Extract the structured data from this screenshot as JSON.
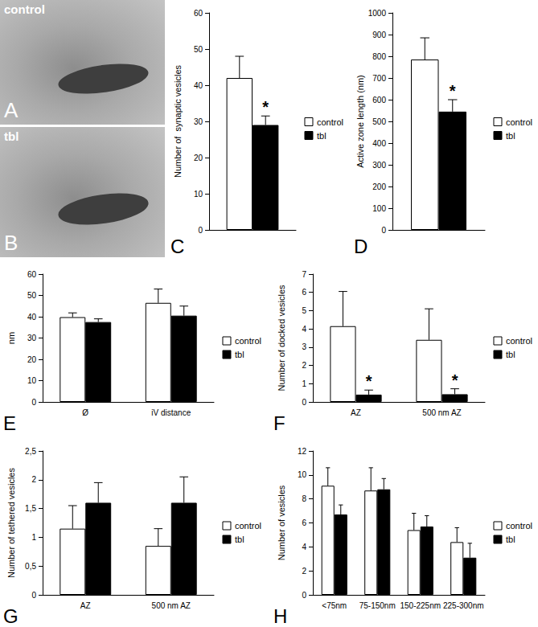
{
  "images": [
    {
      "panel_label": "A",
      "label": "control"
    },
    {
      "panel_label": "B",
      "label": "tbl"
    }
  ],
  "chart_data": [
    {
      "panel_label": "C",
      "type": "bar",
      "y_label": "Number of  synaptic vesicles",
      "categories": [
        null
      ],
      "series": [
        {
          "name": "control",
          "color": "#ffffff",
          "values": [
            42
          ],
          "errors": [
            6
          ]
        },
        {
          "name": "tbl",
          "color": "#000000",
          "values": [
            29
          ],
          "errors": [
            2.5
          ],
          "annotations": [
            "*"
          ]
        }
      ],
      "ylim": [
        0,
        60
      ],
      "yticks": [
        0,
        10,
        20,
        30,
        40,
        50,
        60
      ],
      "grid": false,
      "legend": "right"
    },
    {
      "panel_label": "D",
      "type": "bar",
      "y_label": "Active zone length (nm)",
      "categories": [
        null
      ],
      "series": [
        {
          "name": "control",
          "color": "#ffffff",
          "values": [
            785
          ],
          "errors": [
            100
          ]
        },
        {
          "name": "tbl",
          "color": "#000000",
          "values": [
            545
          ],
          "errors": [
            55
          ],
          "annotations": [
            "*"
          ]
        }
      ],
      "ylim": [
        0,
        1000
      ],
      "yticks": [
        0,
        100,
        200,
        300,
        400,
        500,
        600,
        700,
        800,
        900,
        1000
      ],
      "grid": false,
      "legend": "right"
    },
    {
      "panel_label": "E",
      "type": "bar",
      "y_label": "nm",
      "categories": [
        "Ø",
        "iV distance"
      ],
      "series": [
        {
          "name": "control",
          "color": "#ffffff",
          "values": [
            39.8,
            46.5
          ],
          "errors": [
            2,
            6.5
          ]
        },
        {
          "name": "tbl",
          "color": "#000000",
          "values": [
            37.5,
            40.5
          ],
          "errors": [
            1.5,
            4.5
          ]
        }
      ],
      "ylim": [
        0,
        60
      ],
      "yticks": [
        0,
        10,
        20,
        30,
        40,
        50,
        60
      ],
      "grid": false,
      "legend": "right"
    },
    {
      "panel_label": "F",
      "type": "bar",
      "y_label": "Number of docked vesicles",
      "categories": [
        "AZ",
        "500 nm AZ"
      ],
      "series": [
        {
          "name": "control",
          "color": "#ffffff",
          "values": [
            4.15,
            3.4
          ],
          "errors": [
            1.9,
            1.7
          ]
        },
        {
          "name": "tbl",
          "color": "#000000",
          "values": [
            0.4,
            0.42
          ],
          "errors": [
            0.25,
            0.3
          ],
          "annotations": [
            "*",
            "*"
          ]
        }
      ],
      "ylim": [
        0,
        7
      ],
      "yticks": [
        0,
        1,
        2,
        3,
        4,
        5,
        6,
        7
      ],
      "grid": false,
      "legend": "right"
    },
    {
      "panel_label": "G",
      "type": "bar",
      "y_label": "Number of tethered vesicles",
      "categories": [
        "AZ",
        "500 nm AZ"
      ],
      "series": [
        {
          "name": "control",
          "color": "#ffffff",
          "values": [
            1.15,
            0.85
          ],
          "errors": [
            0.4,
            0.3
          ]
        },
        {
          "name": "tbl",
          "color": "#000000",
          "values": [
            1.6,
            1.6
          ],
          "errors": [
            0.35,
            0.45
          ]
        }
      ],
      "ylim": [
        0,
        2.5
      ],
      "yticks": [
        0,
        {
          "value": 0.5,
          "label": "0,5"
        },
        1,
        {
          "value": 1.5,
          "label": "1,5"
        },
        2,
        {
          "value": 2.5,
          "label": "2,5"
        }
      ],
      "grid": false,
      "legend": "right"
    },
    {
      "panel_label": "H",
      "type": "bar",
      "y_label": "Number of vesicles",
      "categories": [
        "<75nm",
        "75-150nm",
        "150-225nm",
        "225-300nm"
      ],
      "series": [
        {
          "name": "control",
          "color": "#ffffff",
          "values": [
            9.1,
            8.7,
            5.4,
            4.4
          ],
          "errors": [
            1.5,
            1.9,
            1.4,
            1.2
          ]
        },
        {
          "name": "tbl",
          "color": "#000000",
          "values": [
            6.7,
            8.8,
            5.7,
            3.1
          ],
          "errors": [
            0.8,
            0.9,
            0.9,
            1.2
          ]
        }
      ],
      "ylim": [
        0,
        12
      ],
      "yticks": [
        0,
        2,
        4,
        6,
        8,
        10,
        12
      ],
      "grid": false,
      "legend": "right"
    }
  ]
}
